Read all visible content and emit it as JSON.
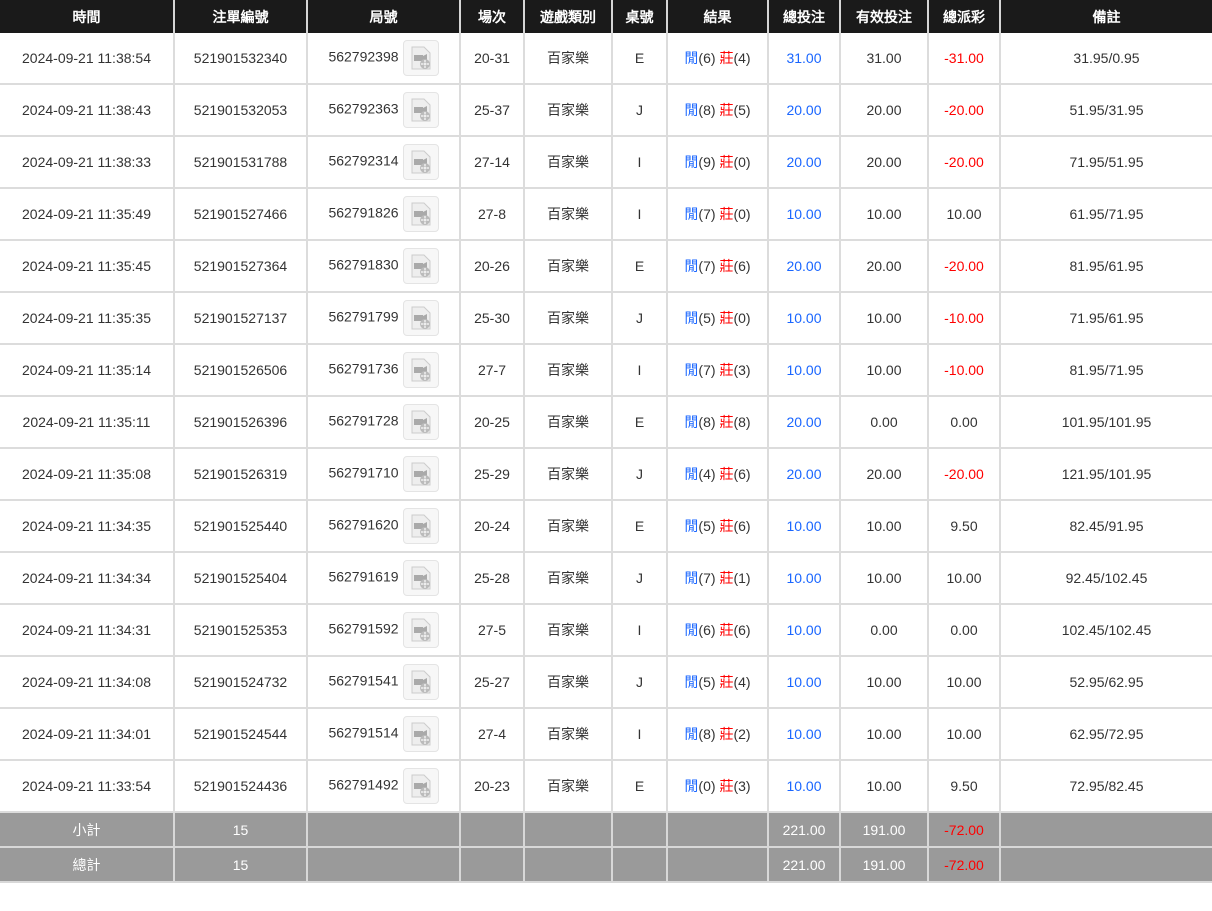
{
  "columns": [
    "時間",
    "注單編號",
    "局號",
    "場次",
    "遊戲類別",
    "桌號",
    "結果",
    "總投注",
    "有效投注",
    "總派彩",
    "備註"
  ],
  "result_labels": {
    "player": "閒",
    "banker": "莊"
  },
  "colors": {
    "header_bg": "#1a1a1a",
    "blue": "#1a66ff",
    "red": "#ff0000",
    "summary_bg": "#9a9a9a"
  },
  "rows": [
    {
      "time": "2024-09-21 11:38:54",
      "order": "521901532340",
      "round": "562792398",
      "shoe": "20-31",
      "game": "百家樂",
      "table": "E",
      "player": "(6)",
      "banker": "(4)",
      "total": "31.00",
      "valid": "31.00",
      "payout": "-31.00",
      "note": "31.95/0.95"
    },
    {
      "time": "2024-09-21 11:38:43",
      "order": "521901532053",
      "round": "562792363",
      "shoe": "25-37",
      "game": "百家樂",
      "table": "J",
      "player": "(8)",
      "banker": "(5)",
      "total": "20.00",
      "valid": "20.00",
      "payout": "-20.00",
      "note": "51.95/31.95"
    },
    {
      "time": "2024-09-21 11:38:33",
      "order": "521901531788",
      "round": "562792314",
      "shoe": "27-14",
      "game": "百家樂",
      "table": "I",
      "player": "(9)",
      "banker": "(0)",
      "total": "20.00",
      "valid": "20.00",
      "payout": "-20.00",
      "note": "71.95/51.95"
    },
    {
      "time": "2024-09-21 11:35:49",
      "order": "521901527466",
      "round": "562791826",
      "shoe": "27-8",
      "game": "百家樂",
      "table": "I",
      "player": "(7)",
      "banker": "(0)",
      "total": "10.00",
      "valid": "10.00",
      "payout": "10.00",
      "note": "61.95/71.95"
    },
    {
      "time": "2024-09-21 11:35:45",
      "order": "521901527364",
      "round": "562791830",
      "shoe": "20-26",
      "game": "百家樂",
      "table": "E",
      "player": "(7)",
      "banker": "(6)",
      "total": "20.00",
      "valid": "20.00",
      "payout": "-20.00",
      "note": "81.95/61.95"
    },
    {
      "time": "2024-09-21 11:35:35",
      "order": "521901527137",
      "round": "562791799",
      "shoe": "25-30",
      "game": "百家樂",
      "table": "J",
      "player": "(5)",
      "banker": "(0)",
      "total": "10.00",
      "valid": "10.00",
      "payout": "-10.00",
      "note": "71.95/61.95"
    },
    {
      "time": "2024-09-21 11:35:14",
      "order": "521901526506",
      "round": "562791736",
      "shoe": "27-7",
      "game": "百家樂",
      "table": "I",
      "player": "(7)",
      "banker": "(3)",
      "total": "10.00",
      "valid": "10.00",
      "payout": "-10.00",
      "note": "81.95/71.95"
    },
    {
      "time": "2024-09-21 11:35:11",
      "order": "521901526396",
      "round": "562791728",
      "shoe": "20-25",
      "game": "百家樂",
      "table": "E",
      "player": "(8)",
      "banker": "(8)",
      "total": "20.00",
      "valid": "0.00",
      "payout": "0.00",
      "note": "101.95/101.95"
    },
    {
      "time": "2024-09-21 11:35:08",
      "order": "521901526319",
      "round": "562791710",
      "shoe": "25-29",
      "game": "百家樂",
      "table": "J",
      "player": "(4)",
      "banker": "(6)",
      "total": "20.00",
      "valid": "20.00",
      "payout": "-20.00",
      "note": "121.95/101.95"
    },
    {
      "time": "2024-09-21 11:34:35",
      "order": "521901525440",
      "round": "562791620",
      "shoe": "20-24",
      "game": "百家樂",
      "table": "E",
      "player": "(5)",
      "banker": "(6)",
      "total": "10.00",
      "valid": "10.00",
      "payout": "9.50",
      "note": "82.45/91.95"
    },
    {
      "time": "2024-09-21 11:34:34",
      "order": "521901525404",
      "round": "562791619",
      "shoe": "25-28",
      "game": "百家樂",
      "table": "J",
      "player": "(7)",
      "banker": "(1)",
      "total": "10.00",
      "valid": "10.00",
      "payout": "10.00",
      "note": "92.45/102.45"
    },
    {
      "time": "2024-09-21 11:34:31",
      "order": "521901525353",
      "round": "562791592",
      "shoe": "27-5",
      "game": "百家樂",
      "table": "I",
      "player": "(6)",
      "banker": "(6)",
      "total": "10.00",
      "valid": "0.00",
      "payout": "0.00",
      "note": "102.45/102.45"
    },
    {
      "time": "2024-09-21 11:34:08",
      "order": "521901524732",
      "round": "562791541",
      "shoe": "25-27",
      "game": "百家樂",
      "table": "J",
      "player": "(5)",
      "banker": "(4)",
      "total": "10.00",
      "valid": "10.00",
      "payout": "10.00",
      "note": "52.95/62.95"
    },
    {
      "time": "2024-09-21 11:34:01",
      "order": "521901524544",
      "round": "562791514",
      "shoe": "27-4",
      "game": "百家樂",
      "table": "I",
      "player": "(8)",
      "banker": "(2)",
      "total": "10.00",
      "valid": "10.00",
      "payout": "10.00",
      "note": "62.95/72.95"
    },
    {
      "time": "2024-09-21 11:33:54",
      "order": "521901524436",
      "round": "562791492",
      "shoe": "20-23",
      "game": "百家樂",
      "table": "E",
      "player": "(0)",
      "banker": "(3)",
      "total": "10.00",
      "valid": "10.00",
      "payout": "9.50",
      "note": "72.95/82.45"
    }
  ],
  "summary": [
    {
      "label": "小計",
      "count": "15",
      "total": "221.00",
      "valid": "191.00",
      "payout": "-72.00"
    },
    {
      "label": "總計",
      "count": "15",
      "total": "221.00",
      "valid": "191.00",
      "payout": "-72.00"
    }
  ]
}
